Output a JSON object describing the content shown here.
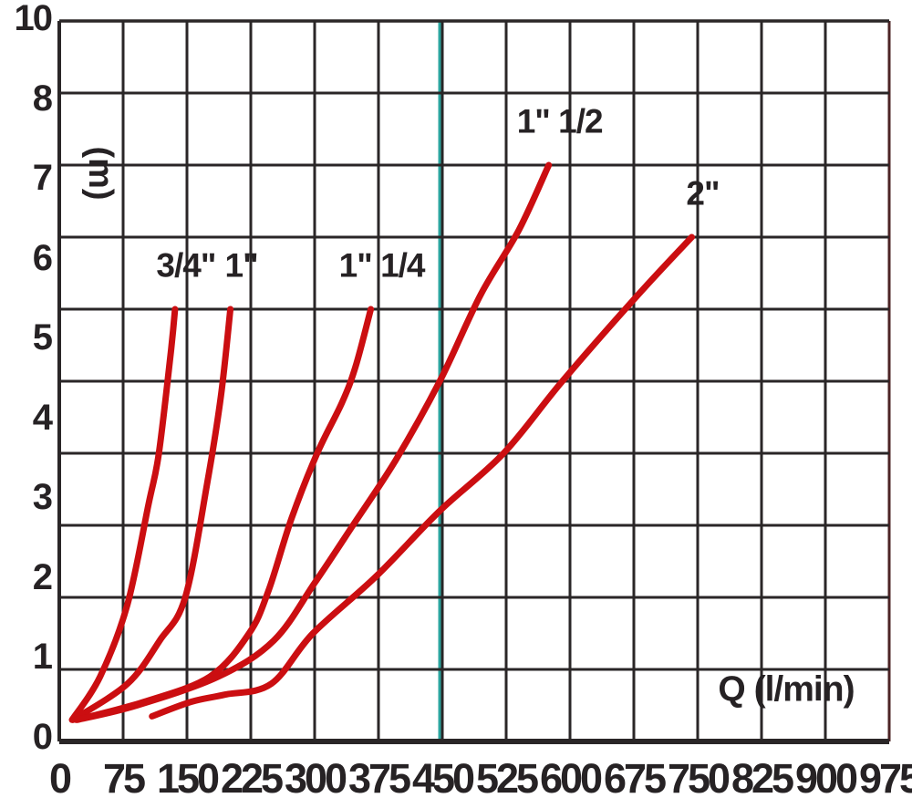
{
  "chart_data": {
    "type": "line",
    "title": "",
    "xlabel": "Q (l/min)",
    "ylabel": "(m)",
    "x_ticks": [
      "0",
      "75",
      "150",
      "225",
      "300",
      "375",
      "450",
      "525",
      "600",
      "675",
      "750",
      "825",
      "900",
      "975"
    ],
    "y_ticks": [
      "10",
      "8",
      "7",
      "6",
      "5",
      "4",
      "3",
      "2",
      "1",
      "0"
    ],
    "x_range": [
      0,
      975
    ],
    "y_range": [
      0,
      10
    ],
    "grid": true,
    "legend_position": "labels-above-curve-ends",
    "highlight_line_q": 450,
    "colors": {
      "curve": "#cb0e11",
      "grid": "#2a2627",
      "right_border": "#4d2426",
      "highlight": "#2ca59f",
      "text": "#262224",
      "background": "#ffffff"
    },
    "series": [
      {
        "name": "3/4\"",
        "points_q_h": [
          [
            15,
            0.3
          ],
          [
            48,
            0.9
          ],
          [
            80,
            1.9
          ],
          [
            105,
            3.3
          ],
          [
            117,
            4.0
          ],
          [
            131,
            4.7
          ],
          [
            136,
            5.0
          ]
        ]
      },
      {
        "name": "1\"",
        "points_q_h": [
          [
            16,
            0.3
          ],
          [
            80,
            0.8
          ],
          [
            118,
            1.4
          ],
          [
            148,
            2.0
          ],
          [
            174,
            3.6
          ],
          [
            190,
            4.4
          ],
          [
            201,
            5.0
          ]
        ]
      },
      {
        "name": "1\" 1/4",
        "points_q_h": [
          [
            20,
            0.3
          ],
          [
            100,
            0.55
          ],
          [
            177,
            0.9
          ],
          [
            223,
            1.5
          ],
          [
            246,
            2.1
          ],
          [
            273,
            3.1
          ],
          [
            303,
            4.0
          ],
          [
            332,
            4.35
          ],
          [
            348,
            4.6
          ],
          [
            366,
            5.0
          ]
        ]
      },
      {
        "name": "1\" 1/2",
        "points_q_h": [
          [
            21,
            0.3
          ],
          [
            91,
            0.5
          ],
          [
            187,
            0.9
          ],
          [
            252,
            1.4
          ],
          [
            300,
            2.2
          ],
          [
            345,
            3.0
          ],
          [
            395,
            3.9
          ],
          [
            447,
            4.5
          ],
          [
            495,
            5.2
          ],
          [
            540,
            6.1
          ],
          [
            575,
            7.0
          ]
        ]
      },
      {
        "name": "2\"",
        "points_q_h": [
          [
            109,
            0.35
          ],
          [
            155,
            0.55
          ],
          [
            195,
            0.65
          ],
          [
            249,
            0.8
          ],
          [
            298,
            1.5
          ],
          [
            373,
            2.3
          ],
          [
            447,
            3.2
          ],
          [
            522,
            4.0
          ],
          [
            591,
            4.5
          ],
          [
            680,
            5.2
          ],
          [
            743,
            6.0
          ]
        ]
      }
    ]
  }
}
